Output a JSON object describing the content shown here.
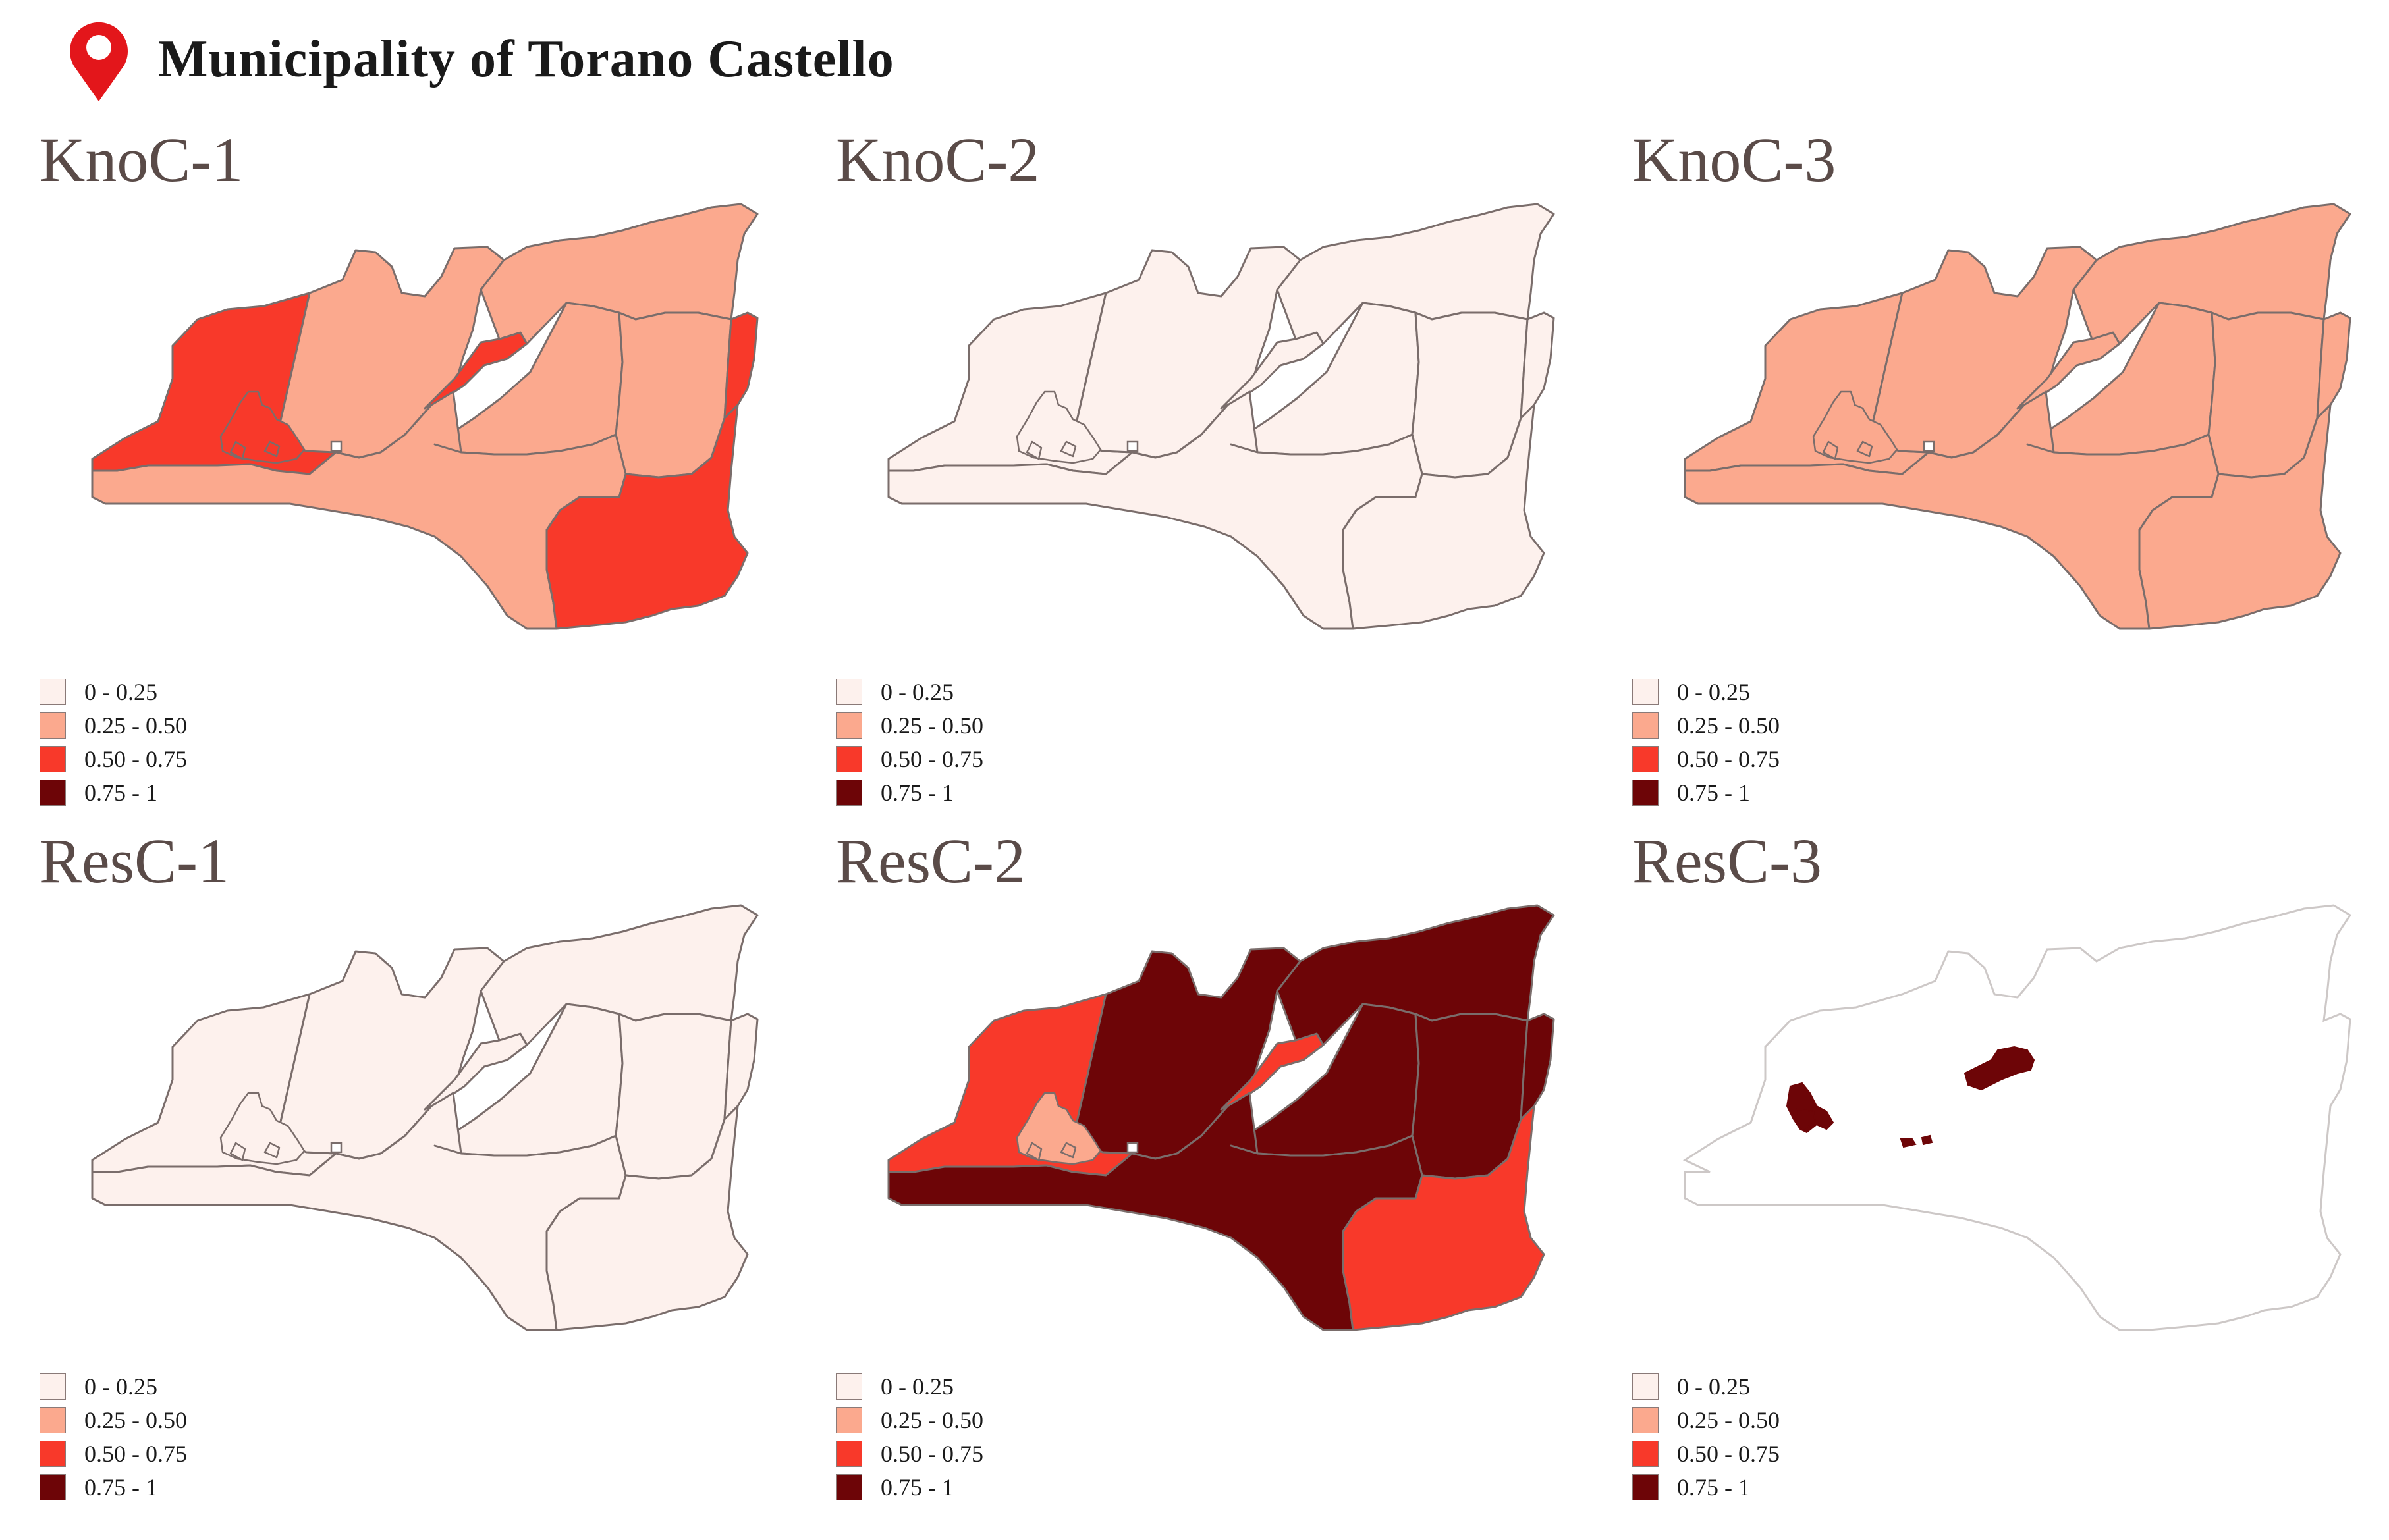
{
  "header": {
    "title": "Municipality of Torano Castello",
    "icon": "map-pin-icon",
    "icon_color": "#e3161b"
  },
  "legend": [
    {
      "label": "0 - 0.25",
      "color": "#fdf1ed"
    },
    {
      "label": "0.25 - 0.50",
      "color": "#fba98e"
    },
    {
      "label": "0.50 - 0.75",
      "color": "#f8392a"
    },
    {
      "label": "0.75 - 1",
      "color": "#6d0507"
    }
  ],
  "outline_color": "#7a6d6b",
  "panels": [
    {
      "title": "KnoC-1",
      "style": "KnoC-1"
    },
    {
      "title": "KnoC-2",
      "style": "KnoC-2"
    },
    {
      "title": "KnoC-3",
      "style": "KnoC-3"
    },
    {
      "title": "ResC-1",
      "style": "ResC-1"
    },
    {
      "title": "ResC-2",
      "style": "ResC-2"
    },
    {
      "title": "ResC-3",
      "style": "ResC-3"
    }
  ]
}
